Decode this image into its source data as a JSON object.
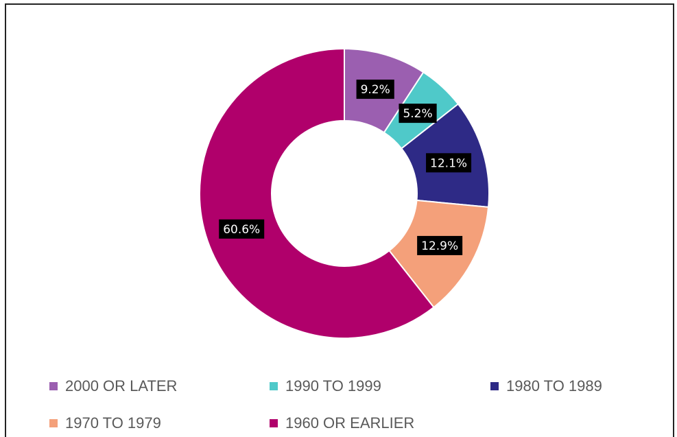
{
  "chart_data": {
    "type": "donut",
    "categories": [
      "2000 OR LATER",
      "1990 TO 1999",
      "1980 TO 1989",
      "1970 TO 1979",
      "1960 OR EARLIER"
    ],
    "values": [
      9.2,
      5.2,
      12.1,
      12.9,
      60.6
    ],
    "value_labels": [
      "9.2%",
      "5.2%",
      "12.1%",
      "12.9%",
      "60.6%"
    ],
    "colors": [
      "#9b5fb0",
      "#4fc9c9",
      "#2e2a86",
      "#f4a07a",
      "#b0006b"
    ]
  }
}
